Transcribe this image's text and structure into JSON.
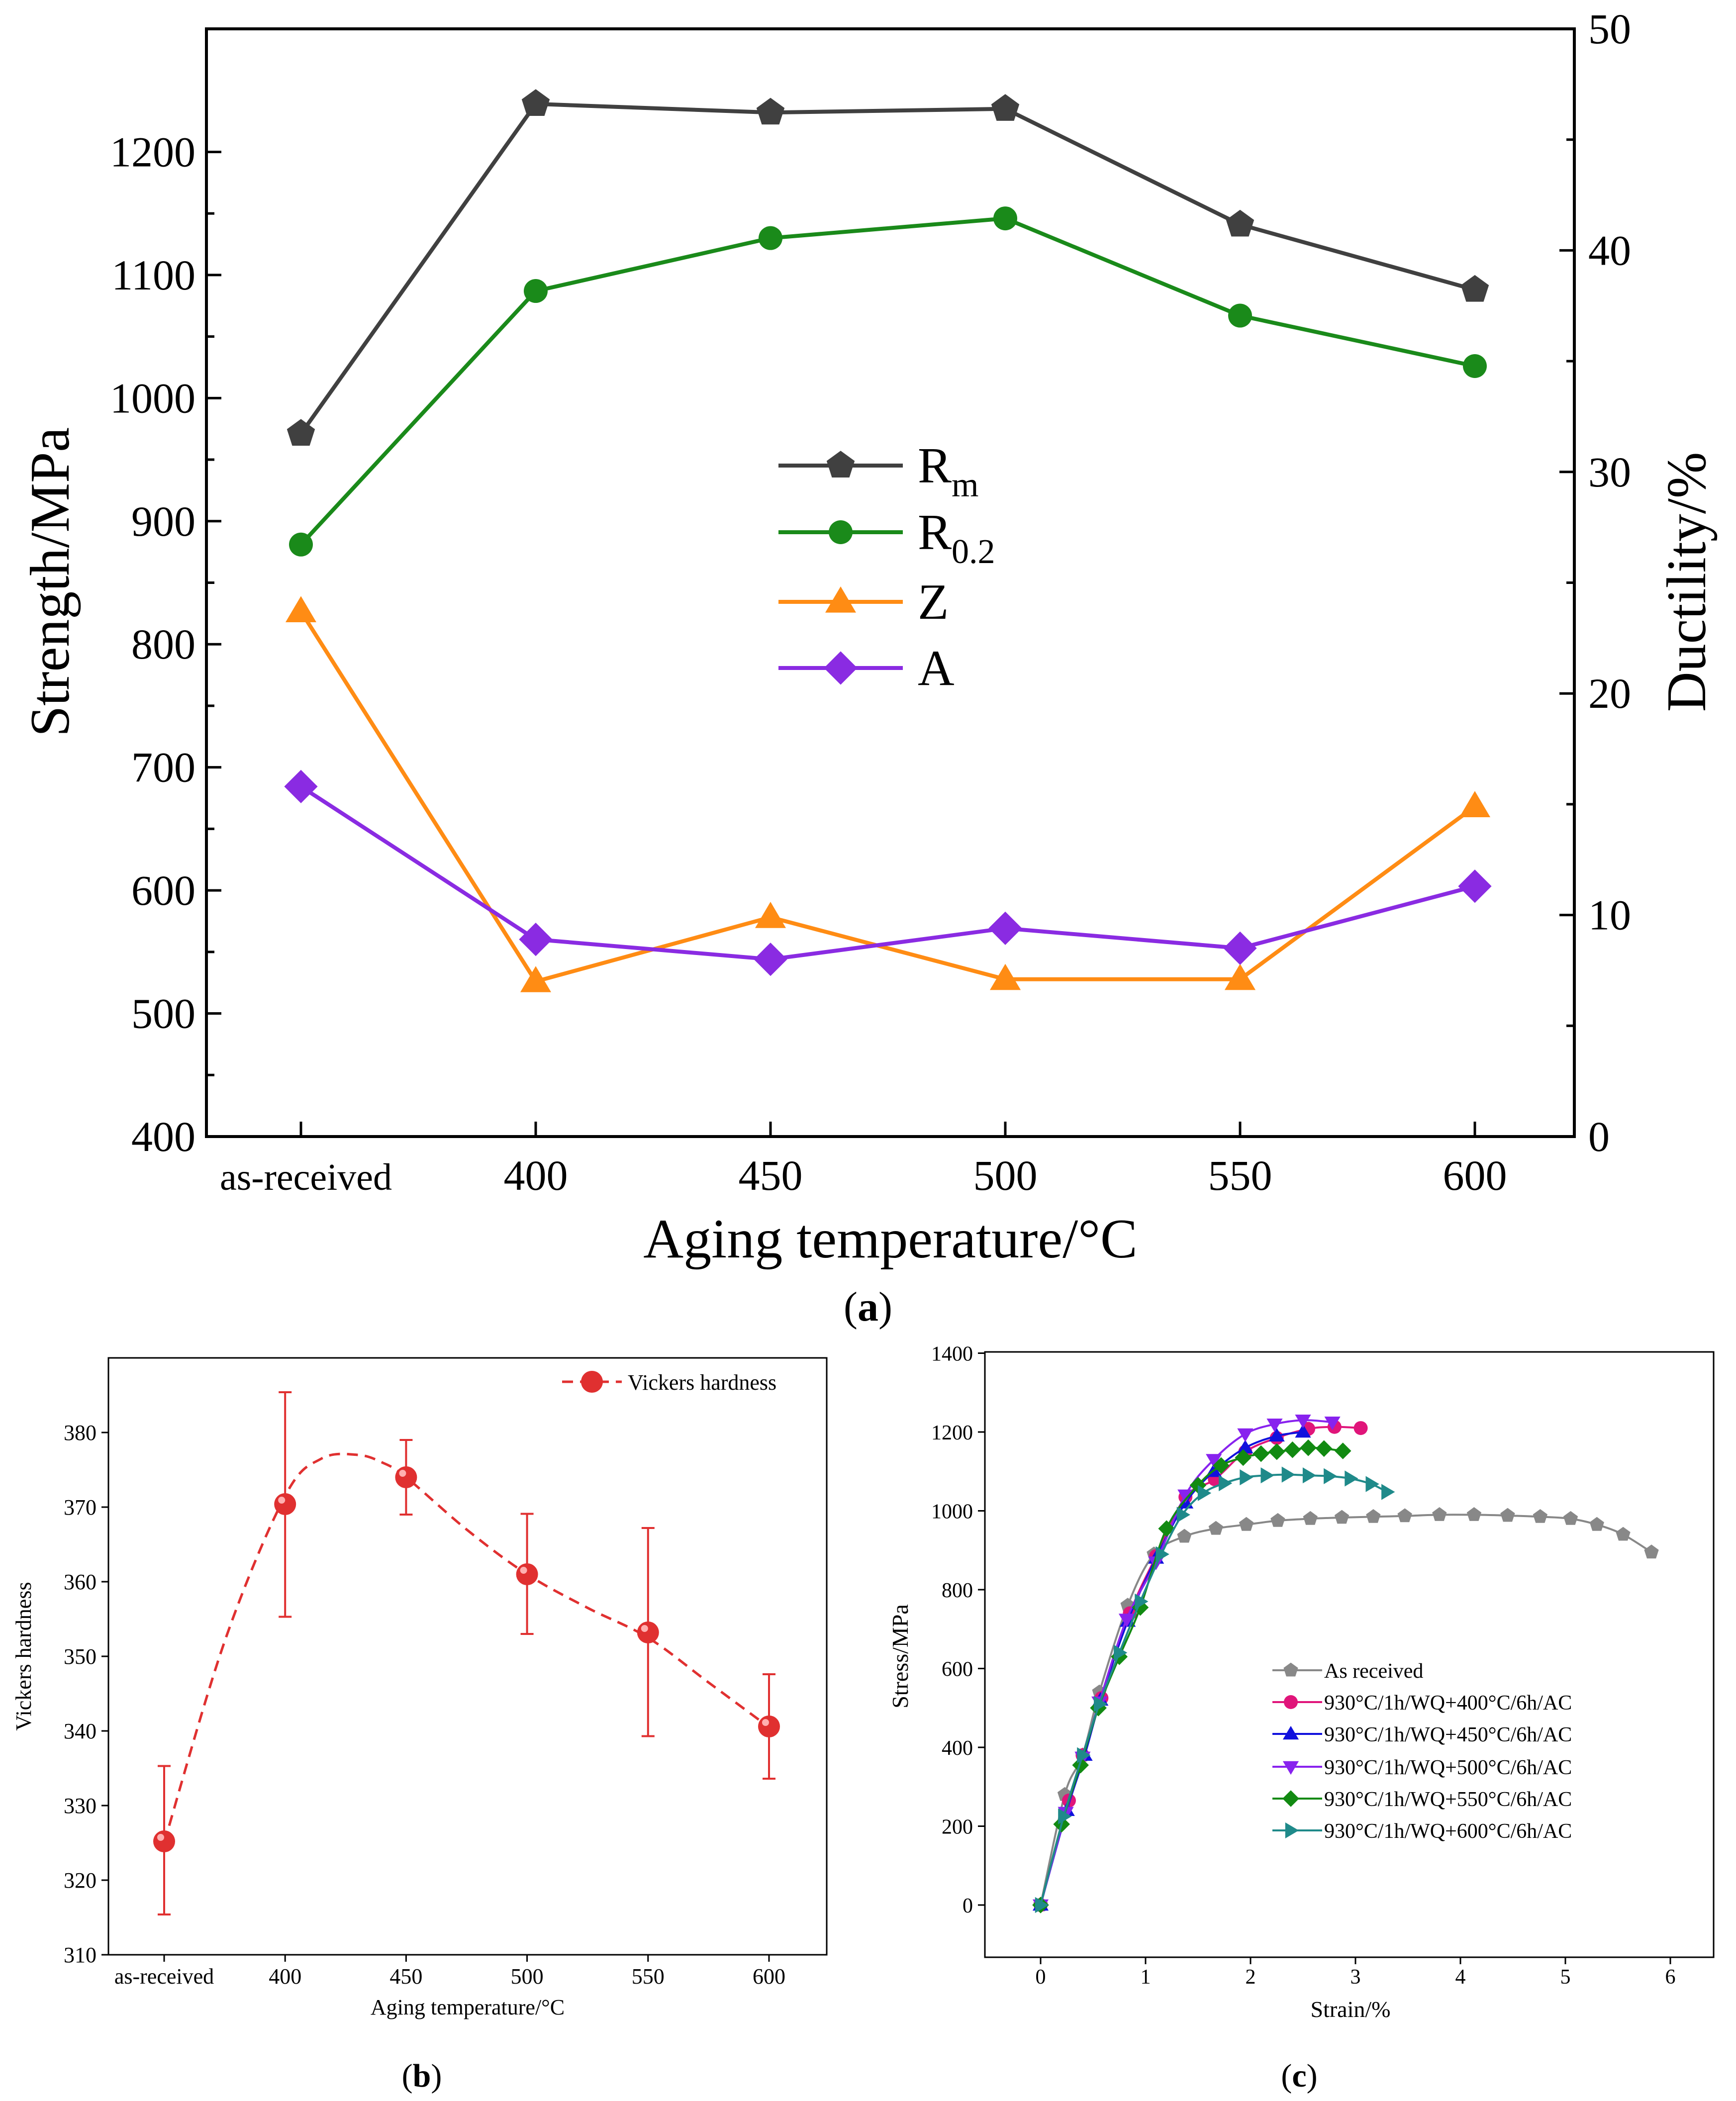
{
  "chart_data": [
    {
      "panel": "a",
      "panel_label": "a",
      "type": "line",
      "xlabel": "Aging temperature/°C",
      "ylabel_left": "Strength/MPa",
      "ylabel_right": "Ductility/%",
      "categories": [
        "as-received",
        "400",
        "450",
        "500",
        "550",
        "600"
      ],
      "ylim_left": [
        400,
        1300
      ],
      "yticks_left": [
        400,
        500,
        600,
        700,
        800,
        900,
        1000,
        1100,
        1200
      ],
      "ylim_right": [
        0,
        50
      ],
      "yticks_right": [
        0,
        10,
        20,
        30,
        40,
        50
      ],
      "series": [
        {
          "name": "R",
          "sub": "m",
          "axis": "left",
          "marker": "pentagon",
          "color": "#404040",
          "values": [
            971,
            1239,
            1232,
            1235,
            1141,
            1088
          ]
        },
        {
          "name": "R",
          "sub": "0.2",
          "axis": "left",
          "marker": "circle",
          "color": "#1a8a1a",
          "values": [
            881,
            1087,
            1130,
            1146,
            1067,
            1026
          ]
        },
        {
          "name": "Z",
          "sub": "",
          "axis": "right",
          "marker": "triangle-up",
          "color": "#ff8c14",
          "values": [
            23.7,
            7.0,
            9.9,
            7.1,
            7.1,
            14.9
          ]
        },
        {
          "name": "A",
          "sub": "",
          "axis": "right",
          "marker": "diamond",
          "color": "#8a2be2",
          "values": [
            15.8,
            8.9,
            8.0,
            9.4,
            8.5,
            11.3
          ]
        }
      ]
    },
    {
      "panel": "b",
      "panel_label": "b",
      "type": "line",
      "xlabel": "Aging temperature/°C",
      "ylabel": "Vickers hardness",
      "categories": [
        "as-received",
        "400",
        "450",
        "500",
        "550",
        "600"
      ],
      "ylim": [
        310,
        390
      ],
      "yticks": [
        310,
        320,
        330,
        340,
        350,
        360,
        370,
        380
      ],
      "series": [
        {
          "name": "Vickers hardness",
          "color": "#e03030",
          "values": [
            325.2,
            370.4,
            374.0,
            361.0,
            353.2,
            340.6
          ],
          "error_low": [
            315.4,
            355.3,
            369.0,
            353.0,
            339.3,
            333.6
          ],
          "error_high": [
            335.3,
            385.4,
            379.0,
            369.1,
            367.2,
            347.6
          ]
        }
      ],
      "fit_curve": {
        "x": [
          0,
          0.5,
          1,
          1.3,
          1.6,
          1.8,
          2,
          2.5,
          3,
          3.5,
          4,
          4.5,
          5
        ],
        "y": [
          325,
          352,
          371.5,
          376.5,
          377,
          376,
          374,
          367,
          361,
          356.5,
          352.5,
          346.5,
          340.5
        ]
      }
    },
    {
      "panel": "c",
      "panel_label": "c",
      "type": "line",
      "xlabel": "Strain/%",
      "ylabel": "Stress/MPa",
      "xlim": [
        -0.45,
        6.5
      ],
      "xticks": [
        0,
        1,
        2,
        3,
        4,
        5,
        6
      ],
      "ylim": [
        -80,
        1400
      ],
      "yticks": [
        0,
        200,
        400,
        600,
        800,
        1000,
        1200,
        1400
      ],
      "series": [
        {
          "name": "As received",
          "color": "#888888",
          "marker": "pentagon",
          "x": [
            0,
            0.23,
            0.4,
            0.56,
            0.83,
            1.08,
            1.37,
            1.67,
            1.96,
            2.26,
            2.57,
            2.87,
            3.17,
            3.47,
            3.8,
            4.13,
            4.45,
            4.76,
            5.05,
            5.3,
            5.55,
            5.82
          ],
          "y": [
            0,
            280,
            380,
            540,
            760,
            890,
            935,
            955,
            965,
            975,
            980,
            983,
            985,
            987,
            990,
            990,
            988,
            985,
            980,
            965,
            940,
            895
          ]
        },
        {
          "name": "930°C/1h/WQ+400°C/6h/AC",
          "color": "#e0157a",
          "marker": "circle",
          "x": [
            0,
            0.27,
            0.4,
            0.58,
            0.85,
            1.1,
            1.38,
            1.66,
            1.95,
            2.25,
            2.55,
            2.8,
            3.05
          ],
          "y": [
            0,
            265,
            380,
            525,
            740,
            885,
            1035,
            1080,
            1150,
            1185,
            1208,
            1213,
            1210
          ]
        },
        {
          "name": "930°C/1h/WQ+450°C/6h/AC",
          "color": "#1111dd",
          "marker": "triangle-up",
          "x": [
            0,
            0.25,
            0.42,
            0.57,
            0.83,
            1.1,
            1.38,
            1.65,
            1.95,
            2.25,
            2.5
          ],
          "y": [
            0,
            240,
            380,
            520,
            720,
            880,
            1020,
            1100,
            1160,
            1190,
            1200
          ]
        },
        {
          "name": "930°C/1h/WQ+500°C/6h/AC",
          "color": "#8822ee",
          "marker": "triangle-down",
          "x": [
            0,
            0.24,
            0.4,
            0.56,
            0.82,
            1.1,
            1.38,
            1.65,
            1.95,
            2.23,
            2.5,
            2.78
          ],
          "y": [
            0,
            235,
            375,
            515,
            725,
            870,
            1040,
            1130,
            1195,
            1220,
            1230,
            1225
          ]
        },
        {
          "name": "930°C/1h/WQ+550°C/6h/AC",
          "color": "#128a12",
          "marker": "diamond",
          "x": [
            0,
            0.2,
            0.38,
            0.55,
            0.75,
            0.95,
            1.2,
            1.5,
            1.72,
            1.93,
            2.1,
            2.25,
            2.4,
            2.55,
            2.7,
            2.88
          ],
          "y": [
            0,
            205,
            355,
            500,
            630,
            755,
            955,
            1065,
            1115,
            1135,
            1145,
            1150,
            1155,
            1160,
            1158,
            1152
          ]
        },
        {
          "name": "930°C/1h/WQ+600°C/6h/AC",
          "color": "#1f8a8a",
          "marker": "triangle-right",
          "x": [
            0,
            0.22,
            0.4,
            0.56,
            0.75,
            0.95,
            1.15,
            1.35,
            1.55,
            1.75,
            1.95,
            2.15,
            2.35,
            2.55,
            2.75,
            2.95,
            3.15,
            3.3
          ],
          "y": [
            0,
            225,
            380,
            510,
            640,
            770,
            890,
            990,
            1045,
            1070,
            1085,
            1090,
            1092,
            1090,
            1088,
            1082,
            1068,
            1048
          ]
        }
      ]
    }
  ]
}
